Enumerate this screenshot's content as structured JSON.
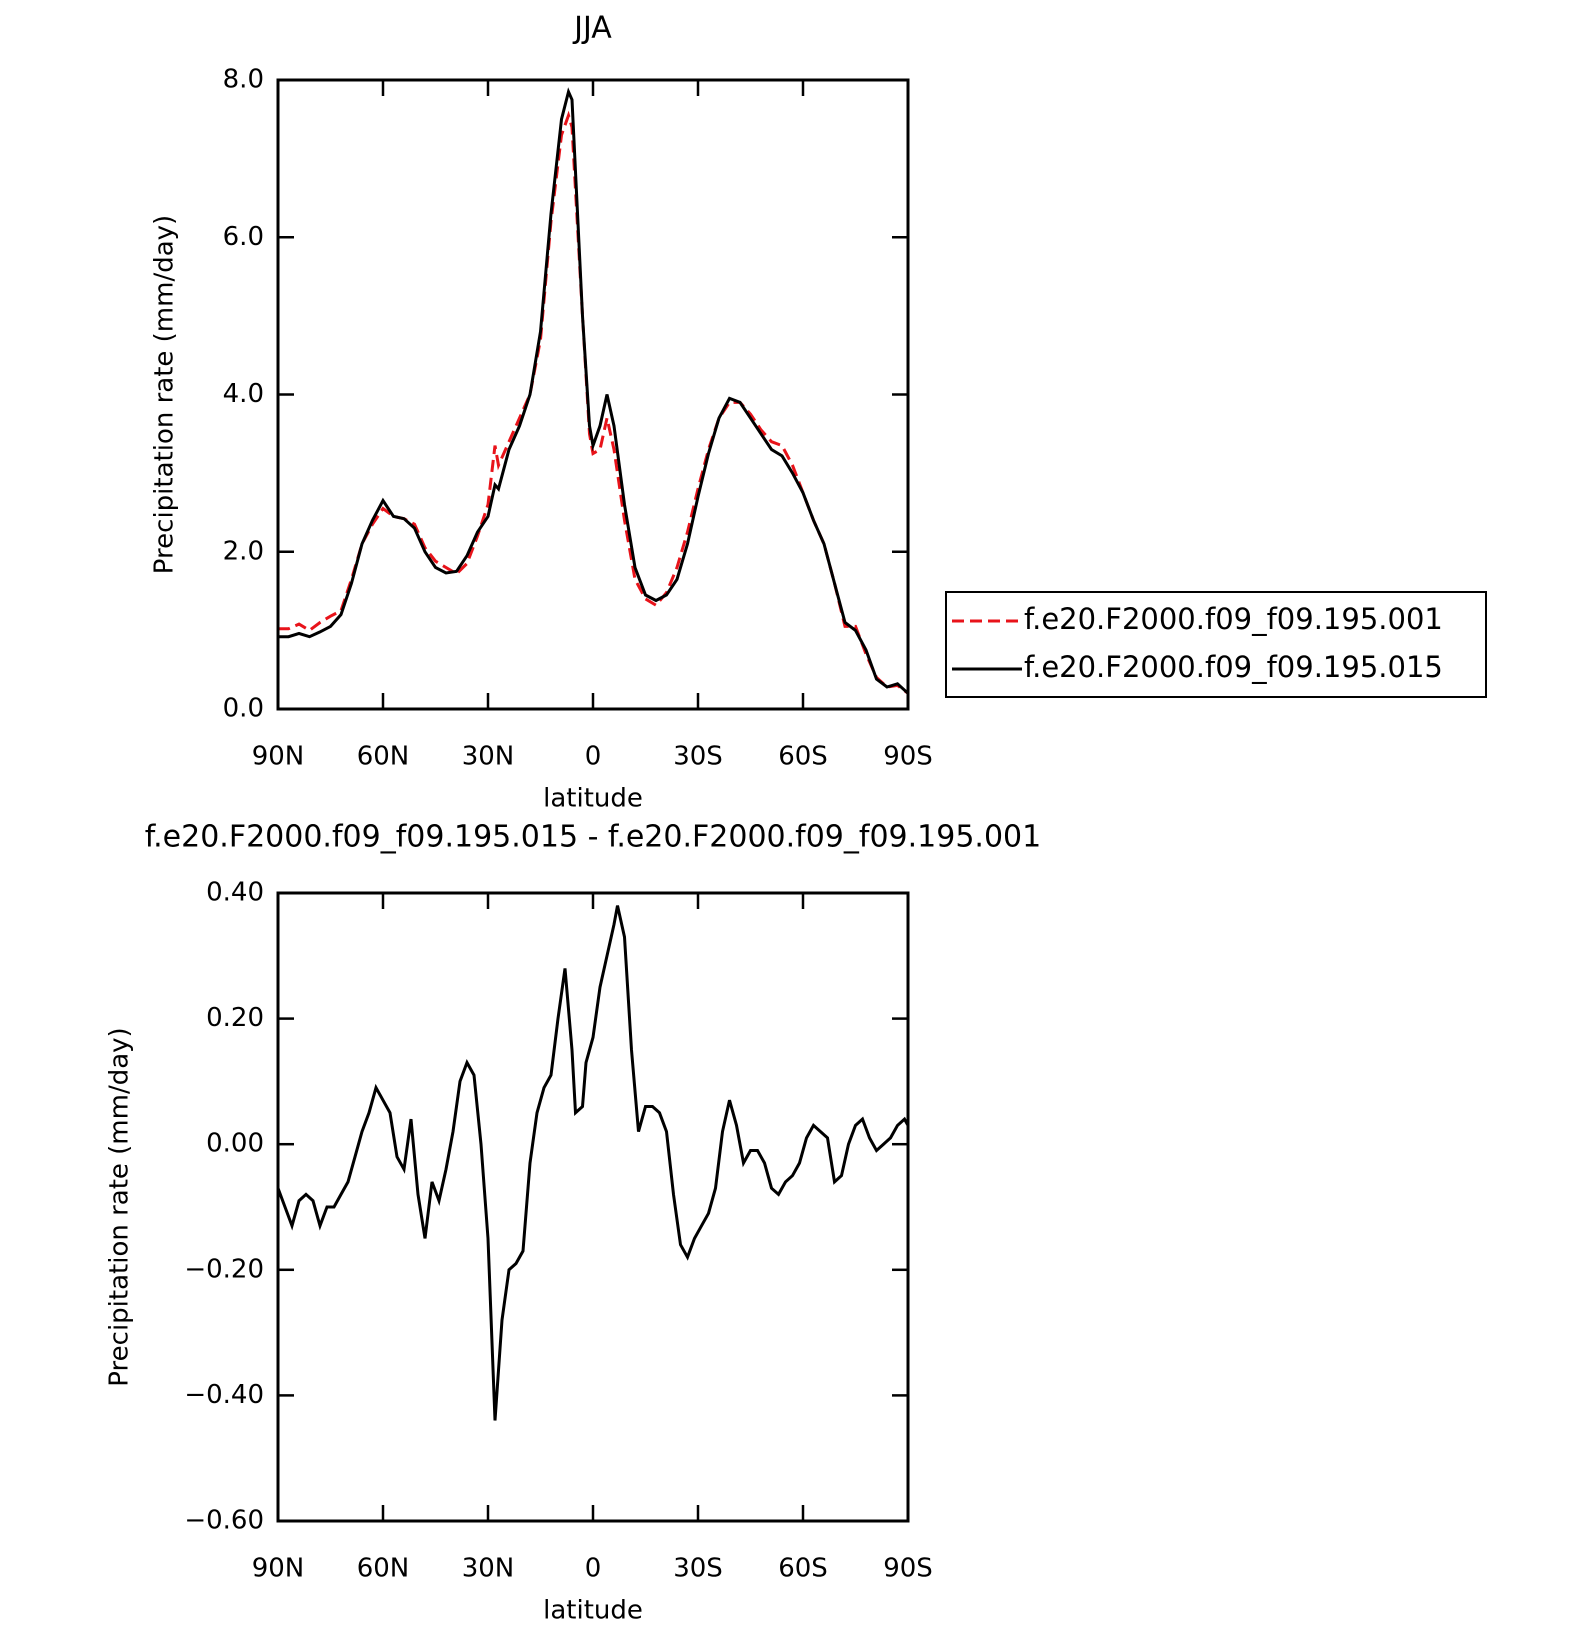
{
  "chart_data": [
    {
      "type": "line",
      "title": "JJA",
      "x_label": "latitude",
      "y_label": "Precipitation rate (mm/day)",
      "legend": "right",
      "x": [
        90,
        87,
        84,
        81,
        78,
        75,
        72,
        69,
        66,
        63,
        60,
        57,
        54,
        51,
        48,
        45,
        42,
        39,
        36,
        33,
        30,
        28,
        27,
        24,
        21,
        18,
        15,
        12,
        9,
        7,
        6,
        3,
        1,
        0,
        -2,
        -4,
        -6,
        -9,
        -12,
        -15,
        -18,
        -21,
        -24,
        -27,
        -30,
        -33,
        -36,
        -39,
        -42,
        -45,
        -48,
        -51,
        -54,
        -57,
        -60,
        -63,
        -66,
        -69,
        -72,
        -75,
        -78,
        -81,
        -84,
        -87,
        -90
      ],
      "series": [
        {
          "name": "f.e20.F2000.f09_f09.195.001",
          "color": "#e8131a",
          "linestyle": "dashed",
          "values": [
            1.02,
            1.02,
            1.08,
            1.0,
            1.1,
            1.18,
            1.25,
            1.65,
            2.1,
            2.35,
            2.55,
            2.45,
            2.42,
            2.35,
            2.05,
            1.88,
            1.8,
            1.72,
            1.85,
            2.2,
            2.6,
            3.35,
            3.1,
            3.4,
            3.7,
            4.0,
            4.7,
            6.2,
            7.3,
            7.55,
            7.4,
            5.0,
            3.5,
            3.25,
            3.3,
            3.7,
            3.3,
            2.4,
            1.65,
            1.4,
            1.32,
            1.48,
            1.8,
            2.25,
            2.8,
            3.3,
            3.7,
            3.9,
            3.9,
            3.75,
            3.55,
            3.4,
            3.35,
            3.1,
            2.75,
            2.4,
            2.1,
            1.6,
            1.05,
            1.05,
            0.7,
            0.4,
            0.28,
            0.3,
            0.2
          ]
        },
        {
          "name": "f.e20.F2000.f09_f09.195.015",
          "color": "#000000",
          "linestyle": "solid",
          "values": [
            0.92,
            0.92,
            0.96,
            0.92,
            0.98,
            1.05,
            1.2,
            1.6,
            2.1,
            2.4,
            2.65,
            2.45,
            2.42,
            2.3,
            2.0,
            1.8,
            1.73,
            1.75,
            1.95,
            2.25,
            2.45,
            2.85,
            2.8,
            3.3,
            3.6,
            4.0,
            4.8,
            6.3,
            7.5,
            7.85,
            7.75,
            5.0,
            3.6,
            3.35,
            3.6,
            4.0,
            3.6,
            2.6,
            1.8,
            1.45,
            1.38,
            1.45,
            1.65,
            2.1,
            2.7,
            3.25,
            3.7,
            3.95,
            3.9,
            3.7,
            3.5,
            3.3,
            3.22,
            3.0,
            2.75,
            2.4,
            2.1,
            1.6,
            1.1,
            1.0,
            0.75,
            0.38,
            0.28,
            0.32,
            0.2
          ]
        }
      ],
      "xlim": [
        90,
        -90
      ],
      "xticks": [
        {
          "value": 90,
          "label": "90N"
        },
        {
          "value": 60,
          "label": "60N"
        },
        {
          "value": 30,
          "label": "30N"
        },
        0,
        {
          "value": -30,
          "label": "30S"
        },
        {
          "value": -60,
          "label": "60S"
        },
        {
          "value": -90,
          "label": "90S"
        }
      ],
      "ylim": [
        0,
        8
      ],
      "yticks": [
        {
          "value": 0,
          "label": "0.0"
        },
        {
          "value": 2,
          "label": "2.0"
        },
        {
          "value": 4,
          "label": "4.0"
        },
        {
          "value": 6,
          "label": "6.0"
        },
        {
          "value": 8,
          "label": "8.0"
        }
      ]
    },
    {
      "type": "line",
      "title": "f.e20.F2000.f09_f09.195.015 - f.e20.F2000.f09_f09.195.001",
      "x_label": "latitude",
      "y_label": "Precipitation rate (mm/day)",
      "color": "#000000",
      "x": [
        90,
        88,
        86,
        84,
        82,
        80,
        78,
        76,
        74,
        72,
        70,
        68,
        66,
        64,
        62,
        60,
        58,
        56,
        54,
        52,
        50,
        48,
        46,
        44,
        42,
        40,
        38,
        36,
        34,
        32,
        30,
        28,
        26,
        24,
        22,
        20,
        18,
        16,
        14,
        12,
        10,
        8,
        6,
        5,
        3,
        2,
        0,
        -2,
        -4,
        -6,
        -7,
        -9,
        -11,
        -13,
        -15,
        -17,
        -19,
        -21,
        -23,
        -25,
        -27,
        -29,
        -31,
        -33,
        -35,
        -37,
        -39,
        -41,
        -43,
        -45,
        -47,
        -49,
        -51,
        -53,
        -55,
        -57,
        -59,
        -61,
        -63,
        -65,
        -67,
        -69,
        -71,
        -73,
        -75,
        -77,
        -79,
        -81,
        -83,
        -85,
        -87,
        -89,
        -90
      ],
      "values": [
        -0.07,
        -0.1,
        -0.13,
        -0.09,
        -0.08,
        -0.09,
        -0.13,
        -0.1,
        -0.1,
        -0.08,
        -0.06,
        -0.02,
        0.02,
        0.05,
        0.09,
        0.07,
        0.05,
        -0.02,
        -0.04,
        0.04,
        -0.08,
        -0.15,
        -0.06,
        -0.09,
        -0.04,
        0.02,
        0.1,
        0.13,
        0.11,
        0.0,
        -0.15,
        -0.44,
        -0.28,
        -0.2,
        -0.19,
        -0.17,
        -0.03,
        0.05,
        0.09,
        0.11,
        0.2,
        0.28,
        0.15,
        0.05,
        0.06,
        0.13,
        0.17,
        0.25,
        0.3,
        0.35,
        0.38,
        0.33,
        0.15,
        0.02,
        0.06,
        0.06,
        0.05,
        0.02,
        -0.08,
        -0.16,
        -0.18,
        -0.15,
        -0.13,
        -0.11,
        -0.07,
        0.02,
        0.07,
        0.03,
        -0.03,
        -0.01,
        -0.01,
        -0.03,
        -0.07,
        -0.08,
        -0.06,
        -0.05,
        -0.03,
        0.01,
        0.03,
        0.02,
        0.01,
        -0.06,
        -0.05,
        0.0,
        0.03,
        0.04,
        0.01,
        -0.01,
        0.0,
        0.01,
        0.03,
        0.04,
        0.03
      ],
      "xlim": [
        90,
        -90
      ],
      "xticks": [
        {
          "value": 90,
          "label": "90N"
        },
        {
          "value": 60,
          "label": "60N"
        },
        {
          "value": 30,
          "label": "30N"
        },
        0,
        {
          "value": -30,
          "label": "30S"
        },
        {
          "value": -60,
          "label": "60S"
        },
        {
          "value": -90,
          "label": "90S"
        }
      ],
      "ylim": [
        -0.6,
        0.4
      ],
      "yticks": [
        {
          "value": -0.6,
          "label": "−0.60"
        },
        {
          "value": -0.4,
          "label": "−0.40"
        },
        {
          "value": -0.2,
          "label": "−0.20"
        },
        {
          "value": 0,
          "label": "0.00"
        },
        {
          "value": 0.2,
          "label": "0.20"
        },
        {
          "value": 0.4,
          "label": "0.40"
        }
      ]
    }
  ]
}
